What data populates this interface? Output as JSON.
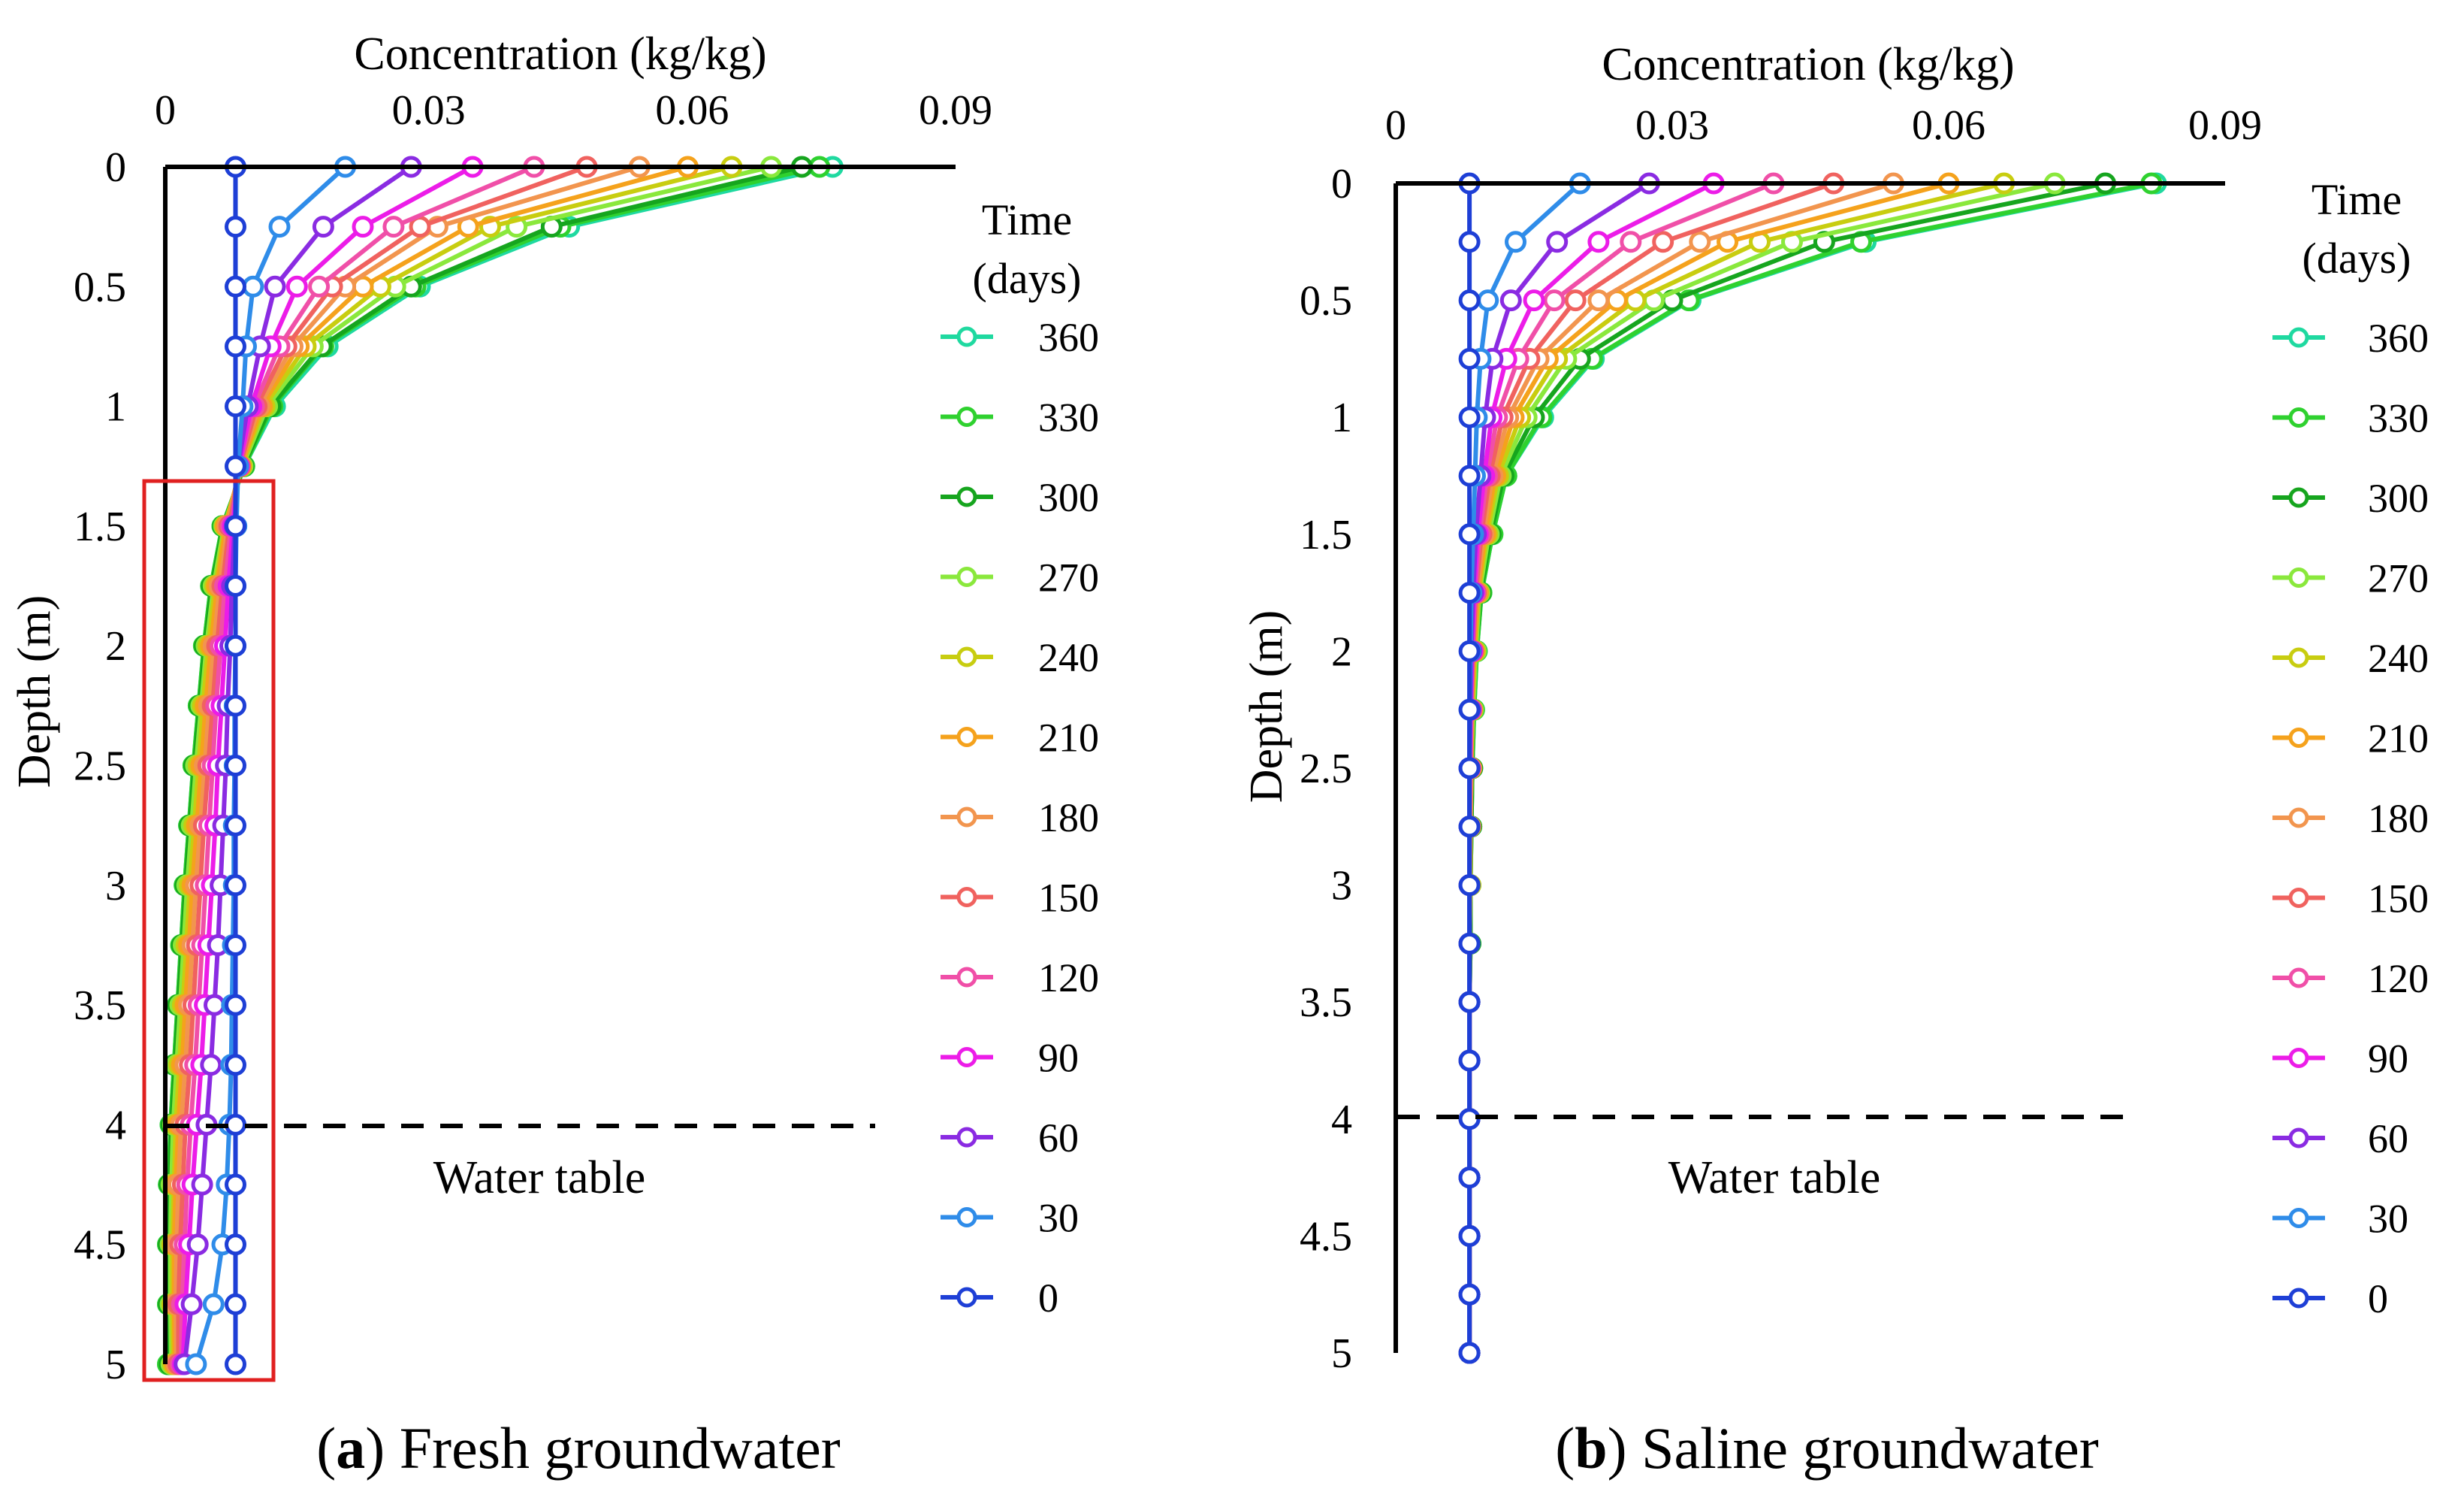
{
  "chart_data": [
    {
      "type": "line",
      "panel_letter": "a",
      "caption_rest": " Fresh groundwater",
      "xlabel": "Concentration (kg/kg)",
      "ylabel": "Depth (m)",
      "xlim": [
        0,
        0.09
      ],
      "ylim": [
        0,
        5
      ],
      "x_ticks": [
        "0",
        "0.03",
        "0.06",
        "0.09"
      ],
      "y_ticks": [
        "0",
        "0.5",
        "1",
        "1.5",
        "2",
        "2.5",
        "3",
        "3.5",
        "4",
        "4.5",
        "5"
      ],
      "y_inverted": true,
      "x_axis_position": "top",
      "grid": false,
      "legend": {
        "title_lines": [
          "Time",
          "(days)"
        ],
        "position": "right"
      },
      "annotations": {
        "water_table_label": "Water table",
        "water_table_depth": 4,
        "highlight_box": {
          "depth_from": 1.35,
          "depth_to": 5.05,
          "x_from": -0.002,
          "x_to": 0.0125
        }
      },
      "depths": [
        0,
        0.25,
        0.5,
        0.75,
        1,
        1.25,
        1.5,
        1.75,
        2,
        2.25,
        2.5,
        2.75,
        3,
        3.25,
        3.5,
        3.75,
        4,
        4.25,
        4.5,
        4.75,
        5
      ],
      "series": [
        {
          "name": "360",
          "color": "#1fd9a0",
          "values": [
            0.076,
            0.046,
            0.029,
            0.0185,
            0.0125,
            0.009,
            0.0065,
            0.0052,
            0.0044,
            0.0038,
            0.0032,
            0.0027,
            0.0022,
            0.0018,
            0.0014,
            0.001,
            0.0006,
            0.0004,
            0.0003,
            0.0003,
            0.0003
          ]
        },
        {
          "name": "330",
          "color": "#2fd12f",
          "values": [
            0.0745,
            0.045,
            0.0285,
            0.018,
            0.0122,
            0.009,
            0.0065,
            0.0052,
            0.0044,
            0.0038,
            0.0032,
            0.0027,
            0.0022,
            0.0018,
            0.0014,
            0.001,
            0.0006,
            0.0004,
            0.0003,
            0.0003,
            0.0003
          ]
        },
        {
          "name": "300",
          "color": "#16a51e",
          "values": [
            0.0725,
            0.044,
            0.028,
            0.0178,
            0.012,
            0.0089,
            0.0066,
            0.0053,
            0.0045,
            0.0039,
            0.0033,
            0.0028,
            0.0023,
            0.0019,
            0.0015,
            0.0011,
            0.0007,
            0.0005,
            0.0004,
            0.0004,
            0.0005
          ]
        },
        {
          "name": "270",
          "color": "#8ae83c",
          "values": [
            0.069,
            0.04,
            0.0262,
            0.0168,
            0.0116,
            0.0088,
            0.0067,
            0.0055,
            0.0047,
            0.0041,
            0.0035,
            0.003,
            0.0025,
            0.0021,
            0.0017,
            0.0013,
            0.0009,
            0.0007,
            0.0006,
            0.0006,
            0.0007
          ]
        },
        {
          "name": "240",
          "color": "#c8cd10",
          "values": [
            0.0645,
            0.037,
            0.0245,
            0.016,
            0.0113,
            0.0087,
            0.0068,
            0.0057,
            0.0049,
            0.0043,
            0.0038,
            0.0033,
            0.0028,
            0.0024,
            0.002,
            0.0016,
            0.0012,
            0.001,
            0.0008,
            0.0008,
            0.0009
          ]
        },
        {
          "name": "210",
          "color": "#f5a21c",
          "values": [
            0.0595,
            0.0345,
            0.0225,
            0.0152,
            0.011,
            0.0086,
            0.0069,
            0.0059,
            0.0052,
            0.0046,
            0.0041,
            0.0036,
            0.0031,
            0.0027,
            0.0023,
            0.0019,
            0.0015,
            0.0012,
            0.001,
            0.001,
            0.0011
          ]
        },
        {
          "name": "180",
          "color": "#f2954e",
          "values": [
            0.054,
            0.031,
            0.0205,
            0.0145,
            0.0107,
            0.0085,
            0.0071,
            0.0062,
            0.0055,
            0.005,
            0.0045,
            0.004,
            0.0035,
            0.0031,
            0.0027,
            0.0023,
            0.0018,
            0.0015,
            0.0013,
            0.0012,
            0.0013
          ]
        },
        {
          "name": "150",
          "color": "#f0625f",
          "values": [
            0.048,
            0.029,
            0.019,
            0.0138,
            0.0104,
            0.0085,
            0.0073,
            0.0065,
            0.0059,
            0.0054,
            0.0049,
            0.0044,
            0.004,
            0.0036,
            0.0032,
            0.0028,
            0.0023,
            0.002,
            0.0017,
            0.0015,
            0.0015
          ]
        },
        {
          "name": "120",
          "color": "#f04fa8",
          "values": [
            0.042,
            0.026,
            0.0175,
            0.013,
            0.0101,
            0.0084,
            0.0075,
            0.0068,
            0.0063,
            0.0058,
            0.0054,
            0.005,
            0.0046,
            0.0042,
            0.0038,
            0.0034,
            0.0029,
            0.0025,
            0.0022,
            0.0019,
            0.0018
          ]
        },
        {
          "name": "90",
          "color": "#ec1ce8",
          "values": [
            0.035,
            0.0225,
            0.015,
            0.012,
            0.0098,
            0.0084,
            0.0077,
            0.0072,
            0.0068,
            0.0064,
            0.006,
            0.0057,
            0.0053,
            0.0049,
            0.0045,
            0.0041,
            0.0036,
            0.0031,
            0.0027,
            0.0023,
            0.002
          ]
        },
        {
          "name": "60",
          "color": "#8a2be2",
          "values": [
            0.028,
            0.018,
            0.0125,
            0.0108,
            0.0094,
            0.0083,
            0.0079,
            0.0076,
            0.0074,
            0.0071,
            0.0069,
            0.0066,
            0.0063,
            0.006,
            0.0056,
            0.0052,
            0.0047,
            0.0042,
            0.0037,
            0.003,
            0.0022
          ]
        },
        {
          "name": "30",
          "color": "#2f8ce9",
          "values": [
            0.0205,
            0.013,
            0.01,
            0.0092,
            0.0088,
            0.0083,
            0.0081,
            0.008,
            0.008,
            0.0079,
            0.0079,
            0.0078,
            0.0078,
            0.0077,
            0.0076,
            0.0075,
            0.0073,
            0.007,
            0.0065,
            0.0055,
            0.0035
          ]
        },
        {
          "name": "0",
          "color": "#1e3fd6",
          "values": [
            0.008,
            0.008,
            0.008,
            0.008,
            0.008,
            0.008,
            0.008,
            0.008,
            0.008,
            0.008,
            0.008,
            0.008,
            0.008,
            0.008,
            0.008,
            0.008,
            0.008,
            0.008,
            0.008,
            0.008,
            0.008
          ]
        }
      ]
    },
    {
      "type": "line",
      "panel_letter": "b",
      "caption_rest": " Saline groundwater",
      "xlabel": "Concentration (kg/kg)",
      "ylabel": "Depth (m)",
      "xlim": [
        0,
        0.09
      ],
      "ylim": [
        0,
        5
      ],
      "x_ticks": [
        "0",
        "0.03",
        "0.06",
        "0.09"
      ],
      "y_ticks": [
        "0",
        "0.5",
        "1",
        "1.5",
        "2",
        "2.5",
        "3",
        "3.5",
        "4",
        "4.5",
        "5"
      ],
      "y_inverted": true,
      "x_axis_position": "top",
      "grid": false,
      "legend": {
        "title_lines": [
          "Time",
          "(days)"
        ],
        "position": "right"
      },
      "annotations": {
        "water_table_label": "Water table",
        "water_table_depth": 4
      },
      "depths": [
        0,
        0.25,
        0.5,
        0.75,
        1,
        1.25,
        1.5,
        1.75,
        2,
        2.25,
        2.5,
        2.75,
        3,
        3.25,
        3.5,
        3.75,
        4,
        4.25,
        4.5,
        4.75,
        5
      ],
      "series": [
        {
          "name": "360",
          "color": "#1fd9a0",
          "values": [
            0.0825,
            0.051,
            0.032,
            0.0215,
            0.016,
            0.012,
            0.0105,
            0.0093,
            0.0088,
            0.0085,
            0.0083,
            0.0082,
            0.0081,
            0.0081,
            0.008,
            0.008,
            0.008,
            0.008,
            0.008,
            0.008,
            0.008
          ]
        },
        {
          "name": "330",
          "color": "#2fd12f",
          "values": [
            0.082,
            0.0505,
            0.0318,
            0.0213,
            0.0158,
            0.012,
            0.0105,
            0.0093,
            0.0088,
            0.0085,
            0.0083,
            0.0082,
            0.0081,
            0.0081,
            0.008,
            0.008,
            0.008,
            0.008,
            0.008,
            0.008,
            0.008
          ]
        },
        {
          "name": "300",
          "color": "#16a51e",
          "values": [
            0.077,
            0.0465,
            0.03,
            0.02,
            0.015,
            0.0117,
            0.0103,
            0.0092,
            0.0087,
            0.0084,
            0.0083,
            0.0082,
            0.0081,
            0.0081,
            0.008,
            0.008,
            0.008,
            0.008,
            0.008,
            0.008,
            0.008
          ]
        },
        {
          "name": "270",
          "color": "#8ae83c",
          "values": [
            0.0715,
            0.043,
            0.028,
            0.0185,
            0.0142,
            0.0114,
            0.0101,
            0.0091,
            0.0087,
            0.0084,
            0.0082,
            0.0081,
            0.0081,
            0.008,
            0.008,
            0.008,
            0.008,
            0.008,
            0.008,
            0.008,
            0.008
          ]
        },
        {
          "name": "240",
          "color": "#c8cd10",
          "values": [
            0.066,
            0.0395,
            0.026,
            0.0175,
            0.0135,
            0.0111,
            0.0099,
            0.009,
            0.0086,
            0.0083,
            0.0082,
            0.0081,
            0.0081,
            0.008,
            0.008,
            0.008,
            0.008,
            0.008,
            0.008,
            0.008,
            0.008
          ]
        },
        {
          "name": "210",
          "color": "#f5a21c",
          "values": [
            0.06,
            0.036,
            0.024,
            0.0165,
            0.0128,
            0.0108,
            0.0097,
            0.0089,
            0.0085,
            0.0083,
            0.0082,
            0.0081,
            0.008,
            0.008,
            0.008,
            0.008,
            0.008,
            0.008,
            0.008,
            0.008,
            0.008
          ]
        },
        {
          "name": "180",
          "color": "#f2954e",
          "values": [
            0.054,
            0.033,
            0.022,
            0.0155,
            0.0122,
            0.0105,
            0.0095,
            0.0088,
            0.0084,
            0.0082,
            0.0081,
            0.0081,
            0.008,
            0.008,
            0.008,
            0.008,
            0.008,
            0.008,
            0.008,
            0.008,
            0.008
          ]
        },
        {
          "name": "150",
          "color": "#f0625f",
          "values": [
            0.0475,
            0.029,
            0.0195,
            0.0145,
            0.0116,
            0.0102,
            0.0093,
            0.0087,
            0.0084,
            0.0082,
            0.0081,
            0.008,
            0.008,
            0.008,
            0.008,
            0.008,
            0.008,
            0.008,
            0.008,
            0.008,
            0.008
          ]
        },
        {
          "name": "120",
          "color": "#f04fa8",
          "values": [
            0.041,
            0.0255,
            0.0172,
            0.0133,
            0.011,
            0.0099,
            0.0091,
            0.0086,
            0.0083,
            0.0082,
            0.0081,
            0.008,
            0.008,
            0.008,
            0.008,
            0.008,
            0.008,
            0.008,
            0.008,
            0.008,
            0.008
          ]
        },
        {
          "name": "90",
          "color": "#ec1ce8",
          "values": [
            0.0345,
            0.022,
            0.015,
            0.012,
            0.0104,
            0.0096,
            0.0089,
            0.0085,
            0.0083,
            0.0081,
            0.008,
            0.008,
            0.008,
            0.008,
            0.008,
            0.008,
            0.008,
            0.008,
            0.008,
            0.008,
            0.008
          ]
        },
        {
          "name": "60",
          "color": "#8a2be2",
          "values": [
            0.0275,
            0.0175,
            0.0125,
            0.0105,
            0.0097,
            0.0092,
            0.0087,
            0.0084,
            0.0082,
            0.0081,
            0.008,
            0.008,
            0.008,
            0.008,
            0.008,
            0.008,
            0.008,
            0.008,
            0.008,
            0.008,
            0.008
          ]
        },
        {
          "name": "30",
          "color": "#2f8ce9",
          "values": [
            0.02,
            0.013,
            0.01,
            0.0092,
            0.0088,
            0.0086,
            0.0084,
            0.0082,
            0.0081,
            0.008,
            0.008,
            0.008,
            0.008,
            0.008,
            0.008,
            0.008,
            0.008,
            0.008,
            0.008,
            0.008,
            0.008
          ]
        },
        {
          "name": "0",
          "color": "#1e3fd6",
          "values": [
            0.008,
            0.008,
            0.008,
            0.008,
            0.008,
            0.008,
            0.008,
            0.008,
            0.008,
            0.008,
            0.008,
            0.008,
            0.008,
            0.008,
            0.008,
            0.008,
            0.008,
            0.008,
            0.008,
            0.008,
            0.008
          ]
        }
      ]
    }
  ]
}
